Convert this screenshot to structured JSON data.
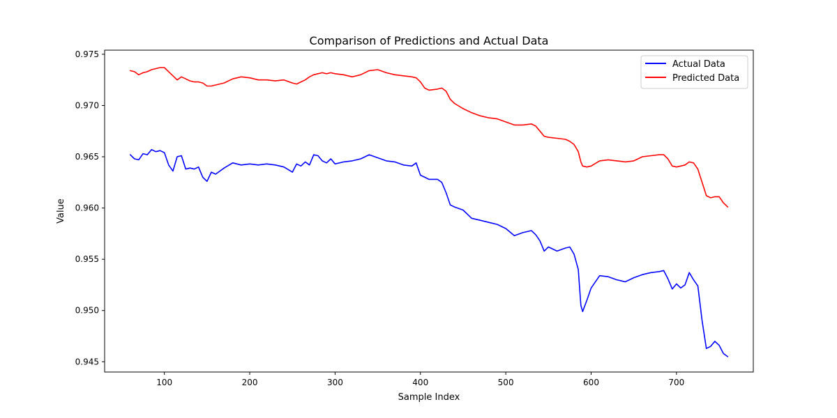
{
  "chart_data": {
    "type": "line",
    "title": "Comparison of Predictions and Actual Data",
    "xlabel": "Sample Index",
    "ylabel": "Value",
    "xlim": [
      30,
      790
    ],
    "ylim": [
      0.944,
      0.9754
    ],
    "xticks": [
      100,
      200,
      300,
      400,
      500,
      600,
      700
    ],
    "yticks": [
      0.945,
      0.95,
      0.955,
      0.96,
      0.965,
      0.97,
      0.975
    ],
    "ytick_labels": [
      "0.945",
      "0.950",
      "0.955",
      "0.960",
      "0.965",
      "0.970",
      "0.975"
    ],
    "grid": false,
    "legend_position": "top-right",
    "series": [
      {
        "name": "Actual Data",
        "color": "#0000ff",
        "x": [
          60,
          65,
          70,
          75,
          80,
          85,
          90,
          95,
          100,
          105,
          110,
          115,
          120,
          125,
          130,
          135,
          140,
          145,
          150,
          155,
          160,
          170,
          180,
          190,
          200,
          210,
          220,
          230,
          240,
          250,
          255,
          260,
          265,
          270,
          275,
          280,
          285,
          290,
          295,
          300,
          310,
          320,
          330,
          340,
          350,
          360,
          370,
          380,
          390,
          395,
          400,
          405,
          410,
          420,
          425,
          430,
          435,
          440,
          450,
          460,
          470,
          480,
          490,
          500,
          510,
          520,
          530,
          535,
          540,
          545,
          550,
          560,
          570,
          575,
          580,
          585,
          588,
          590,
          595,
          600,
          610,
          620,
          630,
          640,
          650,
          660,
          670,
          680,
          685,
          690,
          695,
          700,
          705,
          710,
          715,
          720,
          725,
          730,
          735,
          740,
          745,
          750,
          755,
          760
        ],
        "y": [
          0.9652,
          0.9648,
          0.9647,
          0.9653,
          0.9652,
          0.9657,
          0.9655,
          0.9656,
          0.9654,
          0.9642,
          0.9636,
          0.965,
          0.9651,
          0.9638,
          0.9639,
          0.9638,
          0.964,
          0.963,
          0.9626,
          0.9635,
          0.9633,
          0.9639,
          0.9644,
          0.9642,
          0.9643,
          0.9642,
          0.9643,
          0.9642,
          0.964,
          0.9635,
          0.9643,
          0.9641,
          0.9645,
          0.9642,
          0.9652,
          0.9651,
          0.9646,
          0.9644,
          0.9648,
          0.9643,
          0.9645,
          0.9646,
          0.9648,
          0.9652,
          0.9649,
          0.9646,
          0.9645,
          0.9642,
          0.9641,
          0.9644,
          0.9632,
          0.963,
          0.9628,
          0.9628,
          0.9625,
          0.9615,
          0.9603,
          0.9601,
          0.9598,
          0.959,
          0.9588,
          0.9586,
          0.9584,
          0.958,
          0.9573,
          0.9576,
          0.9578,
          0.9574,
          0.9568,
          0.9558,
          0.9562,
          0.9558,
          0.9561,
          0.9562,
          0.9555,
          0.954,
          0.9505,
          0.9499,
          0.951,
          0.9522,
          0.9534,
          0.9533,
          0.953,
          0.9528,
          0.9532,
          0.9535,
          0.9537,
          0.9538,
          0.9539,
          0.9531,
          0.9521,
          0.9526,
          0.9522,
          0.9525,
          0.9537,
          0.953,
          0.9524,
          0.949,
          0.9463,
          0.9465,
          0.947,
          0.9466,
          0.9458,
          0.9455
        ]
      },
      {
        "name": "Predicted Data",
        "color": "#ff0000",
        "x": [
          60,
          65,
          70,
          75,
          80,
          85,
          90,
          95,
          100,
          105,
          110,
          115,
          120,
          125,
          130,
          135,
          140,
          145,
          150,
          155,
          160,
          170,
          180,
          190,
          200,
          210,
          220,
          230,
          240,
          250,
          255,
          260,
          265,
          270,
          275,
          280,
          285,
          290,
          295,
          300,
          310,
          320,
          330,
          340,
          350,
          360,
          370,
          380,
          390,
          395,
          400,
          405,
          410,
          420,
          425,
          430,
          435,
          440,
          450,
          460,
          470,
          480,
          490,
          500,
          510,
          520,
          530,
          535,
          540,
          545,
          550,
          560,
          570,
          575,
          580,
          585,
          588,
          590,
          595,
          600,
          610,
          620,
          630,
          640,
          650,
          660,
          670,
          680,
          685,
          690,
          695,
          700,
          705,
          710,
          715,
          720,
          725,
          730,
          735,
          740,
          745,
          750,
          755,
          760
        ],
        "y": [
          0.9734,
          0.9733,
          0.973,
          0.9732,
          0.9733,
          0.9735,
          0.9736,
          0.9737,
          0.9737,
          0.9733,
          0.9729,
          0.9725,
          0.9728,
          0.9726,
          0.9724,
          0.9723,
          0.9723,
          0.9722,
          0.9719,
          0.9719,
          0.972,
          0.9722,
          0.9726,
          0.9728,
          0.9727,
          0.9725,
          0.9725,
          0.9724,
          0.9725,
          0.9722,
          0.9721,
          0.9723,
          0.9725,
          0.9728,
          0.973,
          0.9731,
          0.9732,
          0.9731,
          0.9732,
          0.9731,
          0.973,
          0.9728,
          0.973,
          0.9734,
          0.9735,
          0.9732,
          0.973,
          0.9729,
          0.9728,
          0.9727,
          0.9723,
          0.9717,
          0.9715,
          0.9716,
          0.9717,
          0.9714,
          0.9706,
          0.9702,
          0.9697,
          0.9693,
          0.969,
          0.9688,
          0.9687,
          0.9684,
          0.9681,
          0.9681,
          0.9682,
          0.968,
          0.9675,
          0.967,
          0.9669,
          0.9668,
          0.9667,
          0.9665,
          0.9662,
          0.9655,
          0.9645,
          0.9641,
          0.964,
          0.9641,
          0.9646,
          0.9647,
          0.9646,
          0.9645,
          0.9646,
          0.965,
          0.9651,
          0.9652,
          0.9652,
          0.9648,
          0.9641,
          0.964,
          0.9641,
          0.9642,
          0.9645,
          0.9644,
          0.9638,
          0.9625,
          0.9612,
          0.961,
          0.9611,
          0.9611,
          0.9605,
          0.9601
        ]
      }
    ]
  }
}
